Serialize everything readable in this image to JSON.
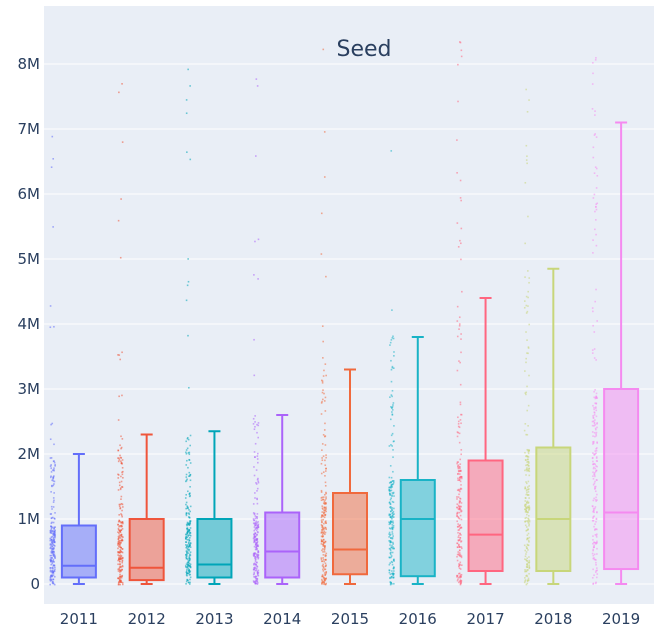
{
  "chart_data": {
    "type": "box",
    "title": "Seed",
    "xlabel": "",
    "ylabel": "",
    "ylim": [
      -250000,
      8800000
    ],
    "yticks": [
      0,
      1000000,
      2000000,
      3000000,
      4000000,
      5000000,
      6000000,
      7000000,
      8000000
    ],
    "ytick_labels": [
      "0",
      "1M",
      "2M",
      "3M",
      "4M",
      "5M",
      "6M",
      "7M",
      "8M"
    ],
    "grid": true,
    "legend": "none",
    "categories": [
      "2011",
      "2012",
      "2013",
      "2014",
      "2015",
      "2016",
      "2017",
      "2018",
      "2019"
    ],
    "series": [
      {
        "category": "2011",
        "color": "#636efa",
        "min": 0,
        "q1": 100000,
        "median": 280000,
        "q3": 900000,
        "max": 2000000
      },
      {
        "category": "2012",
        "color": "#ef553b",
        "min": 0,
        "q1": 60000,
        "median": 250000,
        "q3": 1000000,
        "max": 2300000
      },
      {
        "category": "2013",
        "color": "#00a5b8",
        "min": 0,
        "q1": 100000,
        "median": 300000,
        "q3": 1000000,
        "max": 2350000
      },
      {
        "category": "2014",
        "color": "#ab63fa",
        "min": 0,
        "q1": 100000,
        "median": 500000,
        "q3": 1100000,
        "max": 2600000
      },
      {
        "category": "2015",
        "color": "#f0693d",
        "min": 0,
        "q1": 150000,
        "median": 530000,
        "q3": 1400000,
        "max": 3300000
      },
      {
        "category": "2016",
        "color": "#19b3c6",
        "min": 0,
        "q1": 120000,
        "median": 1000000,
        "q3": 1600000,
        "max": 3800000
      },
      {
        "category": "2017",
        "color": "#ff6680",
        "min": 0,
        "q1": 200000,
        "median": 760000,
        "q3": 1900000,
        "max": 4400000
      },
      {
        "category": "2018",
        "color": "#c8d67a",
        "min": 0,
        "q1": 200000,
        "median": 1000000,
        "q3": 2100000,
        "max": 4850000
      },
      {
        "category": "2019",
        "color": "#f58af0",
        "min": 0,
        "q1": 230000,
        "median": 1100000,
        "q3": 3000000,
        "max": 7100000
      }
    ]
  }
}
